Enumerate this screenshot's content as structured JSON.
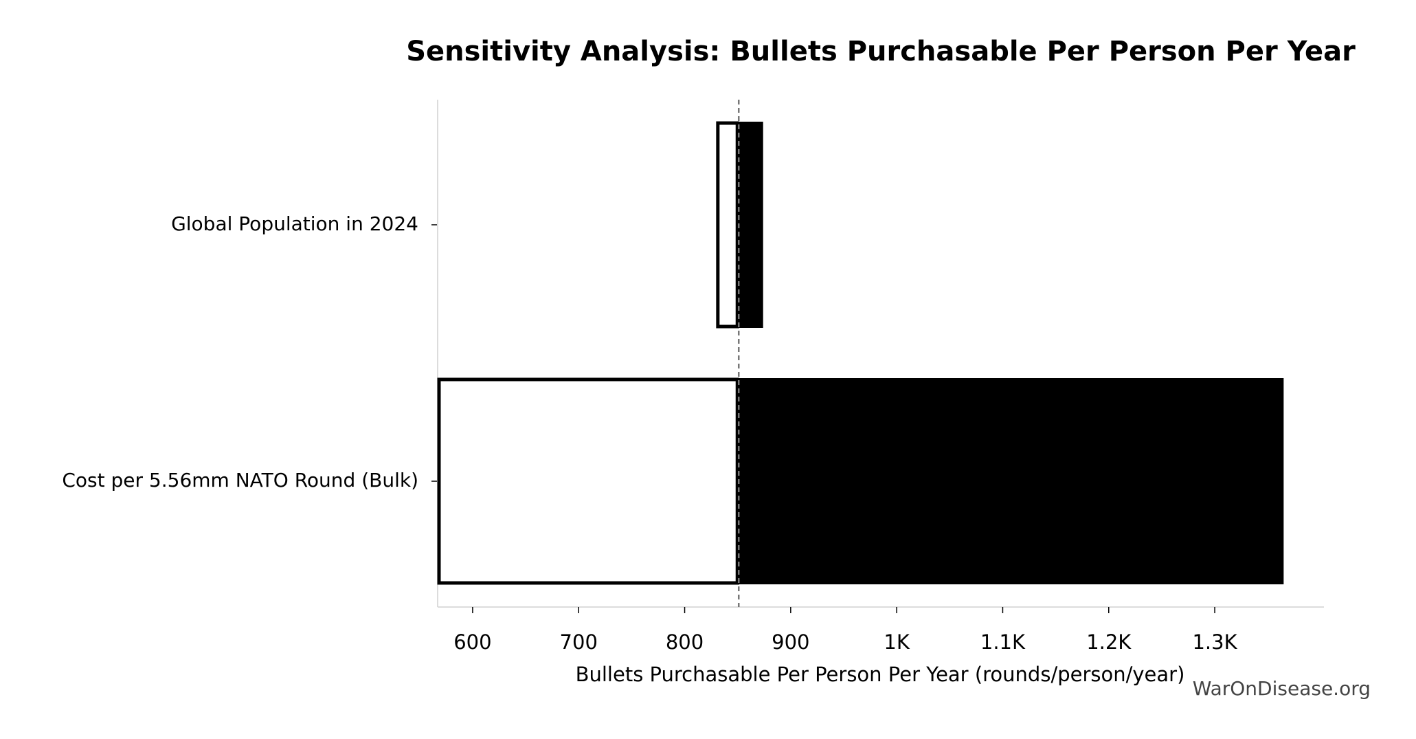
{
  "chart_data": {
    "type": "tornado",
    "title": "Sensitivity Analysis: Bullets Purchasable Per Person Per Year",
    "x_label": "Bullets Purchasable Per Person Per Year (rounds/person/year)",
    "watermark": "WarOnDisease.org",
    "categories": [
      "Global Population in 2024",
      "Cost per 5.56mm NATO Round (Bulk)"
    ],
    "baseline": 851,
    "low": [
      830,
      567
    ],
    "high": [
      874,
      1365
    ],
    "low_color": "#ffffff",
    "high_color": "#000000",
    "xlim": [
      567,
      1403
    ],
    "xticks": [
      600,
      700,
      800,
      900,
      {
        "value": 1000,
        "label": "1K"
      },
      {
        "value": 1100,
        "label": "1.1K"
      },
      {
        "value": 1200,
        "label": "1.2K"
      },
      {
        "value": 1300,
        "label": "1.3K"
      }
    ]
  }
}
